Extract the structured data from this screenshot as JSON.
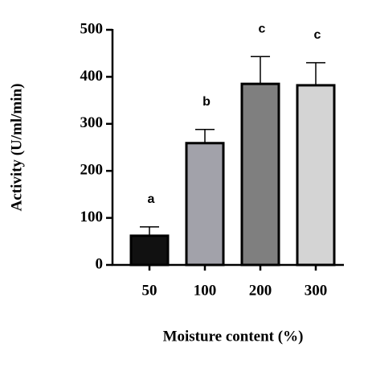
{
  "chart_data": {
    "type": "bar",
    "y_label": "Activity (U/ml/min)",
    "x_label": "Moisture content (%)",
    "categories": [
      "50",
      "100",
      "200",
      "300"
    ],
    "values": [
      62,
      259,
      385,
      382
    ],
    "errors": [
      19,
      29,
      58,
      48
    ],
    "letters": [
      "a",
      "b",
      "c",
      "c"
    ],
    "colors": [
      "#111111",
      "#a2a2aa",
      "#7f7f7f",
      "#d4d4d4"
    ],
    "ylim": [
      0,
      500
    ],
    "yticks": [
      0,
      100,
      200,
      300,
      400,
      500
    ],
    "grid": false
  }
}
